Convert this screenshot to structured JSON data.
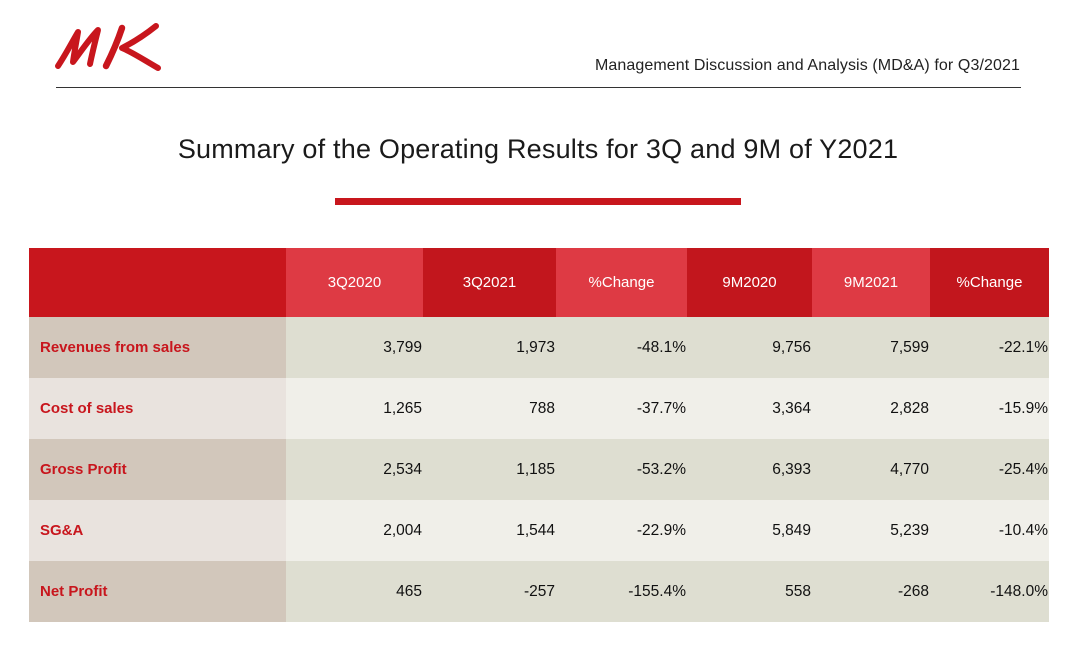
{
  "header": {
    "subtitle": "Management Discussion and Analysis (MD&A) for Q3/2021",
    "logo_icon": "mk-logo-icon",
    "brand_color": "#c8161d"
  },
  "title": "Summary of the Operating Results for 3Q and 9M of Y2021",
  "table": {
    "columns": [
      "",
      "3Q2020",
      "3Q2021",
      "%Change",
      "9M2020",
      "9M2021",
      "%Change"
    ],
    "rows": [
      {
        "label": "Revenues from sales",
        "values": [
          "3,799",
          "1,973",
          "-48.1%",
          "9,756",
          "7,599",
          "-22.1%"
        ]
      },
      {
        "label": "Cost of sales",
        "values": [
          "1,265",
          "788",
          "-37.7%",
          "3,364",
          "2,828",
          "-15.9%"
        ]
      },
      {
        "label": "Gross Profit",
        "values": [
          "2,534",
          "1,185",
          "-53.2%",
          "6,393",
          "4,770",
          "-25.4%"
        ]
      },
      {
        "label": "SG&A",
        "values": [
          "2,004",
          "1,544",
          "-22.9%",
          "5,849",
          "5,239",
          "-10.4%"
        ]
      },
      {
        "label": "Net Profit",
        "values": [
          "465",
          "-257",
          "-155.4%",
          "558",
          "-268",
          "-148.0%"
        ]
      }
    ]
  }
}
